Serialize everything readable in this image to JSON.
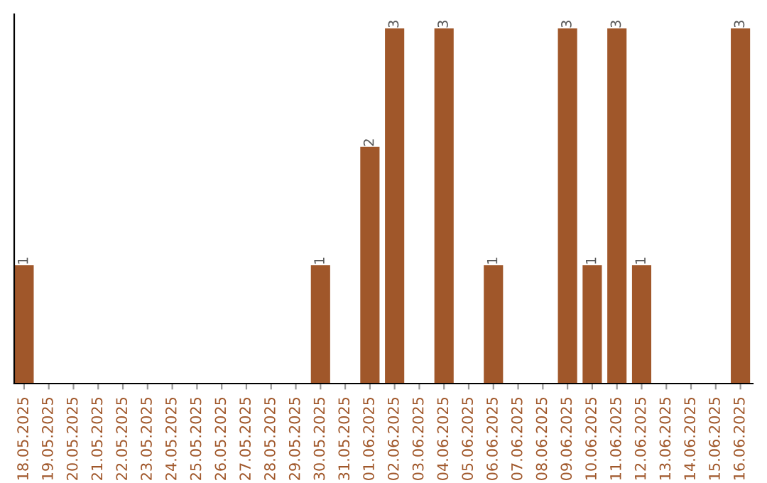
{
  "chart_data": {
    "type": "bar",
    "categories": [
      "18.05.2025",
      "19.05.2025",
      "20.05.2025",
      "21.05.2025",
      "22.05.2025",
      "23.05.2025",
      "24.05.2025",
      "25.05.2025",
      "26.05.2025",
      "27.05.2025",
      "28.05.2025",
      "29.05.2025",
      "30.05.2025",
      "31.05.2025",
      "01.06.2025",
      "02.06.2025",
      "03.06.2025",
      "04.06.2025",
      "05.06.2025",
      "06.06.2025",
      "07.06.2025",
      "08.06.2025",
      "09.06.2025",
      "10.06.2025",
      "11.06.2025",
      "12.06.2025",
      "13.06.2025",
      "14.06.2025",
      "15.06.2025",
      "16.06.2025"
    ],
    "values": [
      1,
      0,
      0,
      0,
      0,
      0,
      0,
      0,
      0,
      0,
      0,
      0,
      1,
      0,
      2,
      3,
      0,
      3,
      0,
      1,
      0,
      0,
      3,
      1,
      3,
      1,
      0,
      0,
      0,
      3
    ],
    "value_labels": [
      "1",
      null,
      null,
      null,
      null,
      null,
      null,
      null,
      null,
      null,
      null,
      null,
      "1",
      null,
      "2",
      "3",
      null,
      "3",
      null,
      "1",
      null,
      null,
      "3",
      "1",
      "3",
      "1",
      null,
      null,
      null,
      "3"
    ],
    "color": "#a0572a",
    "tick_labels": "x",
    "grid": false,
    "legend": false
  }
}
